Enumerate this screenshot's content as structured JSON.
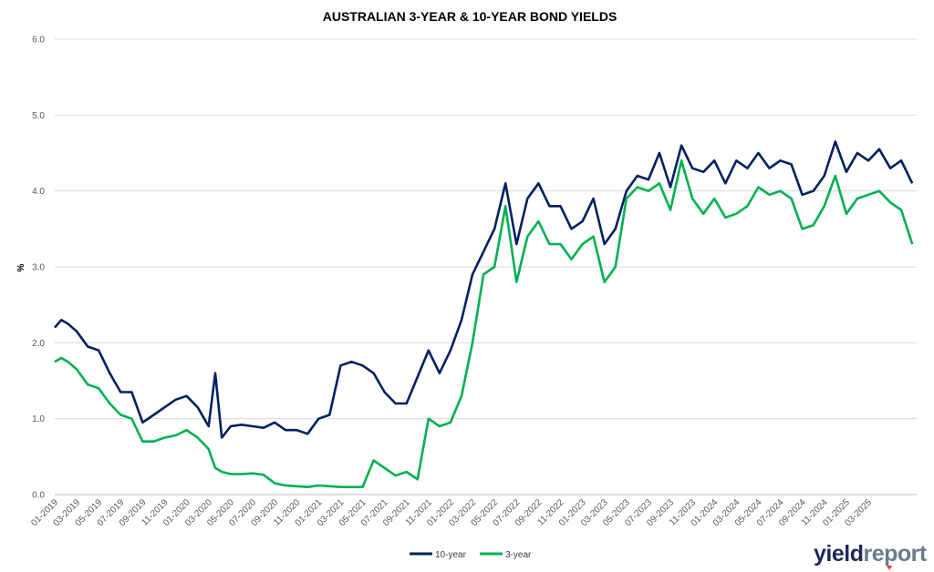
{
  "chart_data": {
    "type": "line",
    "title": "AUSTRALIAN 3-YEAR & 10-YEAR BOND YIELDS",
    "ylabel": "%",
    "xlabel": "",
    "ylim": [
      0,
      6
    ],
    "yticks": [
      "0.0",
      "1.0",
      "2.0",
      "3.0",
      "4.0",
      "5.0",
      "6.0"
    ],
    "xticks": [
      "01-2019",
      "03-2019",
      "05-2019",
      "07-2019",
      "09-2019",
      "11-2019",
      "01-2020",
      "03-2020",
      "05-2020",
      "07-2020",
      "09-2020",
      "11-2020",
      "01-2021",
      "03-2021",
      "05-2021",
      "07-2021",
      "09-2021",
      "11-2021",
      "01-2022",
      "03-2022",
      "05-2022",
      "07-2022",
      "09-2022",
      "11-2022",
      "01-2023",
      "03-2023",
      "05-2023",
      "07-2023",
      "09-2023",
      "11-2023",
      "01-2024",
      "03-2024",
      "05-2024",
      "07-2024",
      "09-2024",
      "11-2024",
      "01-2025",
      "03-2025"
    ],
    "grid": true,
    "legend_position": "bottom",
    "series": [
      {
        "name": "10-year",
        "color": "#002060",
        "x": [
          0,
          0.3,
          0.6,
          1,
          1.5,
          2,
          2.5,
          3,
          3.5,
          4,
          4.5,
          5,
          5.5,
          6,
          6.5,
          7,
          7.3,
          7.6,
          8,
          8.5,
          9,
          9.5,
          10,
          10.5,
          11,
          11.5,
          12,
          12.5,
          13,
          13.5,
          14,
          14.5,
          15,
          15.5,
          16,
          16.5,
          17,
          17.5,
          18,
          18.5,
          19,
          19.5,
          20,
          20.5,
          21,
          21.5,
          22,
          22.5,
          23,
          23.5,
          24,
          24.5,
          25,
          25.5,
          26,
          26.5,
          27,
          27.5,
          28,
          28.5,
          29,
          29.5,
          30,
          30.5,
          31,
          31.5,
          32,
          32.5,
          33,
          33.5,
          34,
          34.5,
          35,
          35.5,
          36,
          36.5,
          37,
          37.5,
          38,
          38.5,
          39
        ],
        "values": [
          2.2,
          2.3,
          2.25,
          2.15,
          1.95,
          1.9,
          1.6,
          1.35,
          1.35,
          0.95,
          1.05,
          1.15,
          1.25,
          1.3,
          1.15,
          0.9,
          1.6,
          0.75,
          0.9,
          0.92,
          0.9,
          0.88,
          0.95,
          0.85,
          0.85,
          0.8,
          1.0,
          1.05,
          1.7,
          1.75,
          1.7,
          1.6,
          1.35,
          1.2,
          1.2,
          1.55,
          1.9,
          1.6,
          1.9,
          2.3,
          2.9,
          3.2,
          3.5,
          4.1,
          3.3,
          3.9,
          4.1,
          3.8,
          3.8,
          3.5,
          3.6,
          3.9,
          3.3,
          3.5,
          4.0,
          4.2,
          4.15,
          4.5,
          4.05,
          4.6,
          4.3,
          4.25,
          4.4,
          4.1,
          4.4,
          4.3,
          4.5,
          4.3,
          4.4,
          4.35,
          3.95,
          4.0,
          4.2,
          4.65,
          4.25,
          4.5,
          4.4,
          4.55,
          4.3,
          4.4,
          4.1
        ]
      },
      {
        "name": "3-year",
        "color": "#00b050",
        "x": [
          0,
          0.3,
          0.6,
          1,
          1.5,
          2,
          2.5,
          3,
          3.5,
          4,
          4.5,
          5,
          5.5,
          6,
          6.5,
          7,
          7.3,
          7.6,
          8,
          8.5,
          9,
          9.5,
          10,
          10.5,
          11,
          11.5,
          12,
          12.5,
          13,
          13.5,
          14,
          14.5,
          15,
          15.5,
          16,
          16.5,
          17,
          17.5,
          18,
          18.5,
          19,
          19.5,
          20,
          20.5,
          21,
          21.5,
          22,
          22.5,
          23,
          23.5,
          24,
          24.5,
          25,
          25.5,
          26,
          26.5,
          27,
          27.5,
          28,
          28.5,
          29,
          29.5,
          30,
          30.5,
          31,
          31.5,
          32,
          32.5,
          33,
          33.5,
          34,
          34.5,
          35,
          35.5,
          36,
          36.5,
          37,
          37.5,
          38,
          38.5,
          39
        ],
        "values": [
          1.75,
          1.8,
          1.75,
          1.65,
          1.45,
          1.4,
          1.2,
          1.05,
          1.0,
          0.7,
          0.7,
          0.75,
          0.78,
          0.85,
          0.75,
          0.6,
          0.35,
          0.3,
          0.27,
          0.27,
          0.28,
          0.26,
          0.15,
          0.12,
          0.11,
          0.1,
          0.12,
          0.11,
          0.1,
          0.1,
          0.1,
          0.45,
          0.35,
          0.25,
          0.3,
          0.2,
          1.0,
          0.9,
          0.95,
          1.3,
          2.0,
          2.9,
          3.0,
          3.8,
          2.8,
          3.4,
          3.6,
          3.3,
          3.3,
          3.1,
          3.3,
          3.4,
          2.8,
          3.0,
          3.9,
          4.05,
          4.0,
          4.1,
          3.75,
          4.4,
          3.9,
          3.7,
          3.9,
          3.65,
          3.7,
          3.8,
          4.05,
          3.95,
          4.0,
          3.9,
          3.5,
          3.55,
          3.8,
          4.2,
          3.7,
          3.9,
          3.95,
          4.0,
          3.85,
          3.75,
          3.3
        ]
      }
    ]
  },
  "logo": {
    "part1": "yield",
    "part2": "report"
  }
}
